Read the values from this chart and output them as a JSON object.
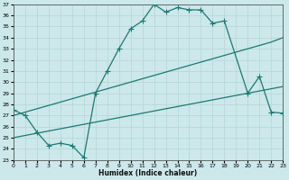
{
  "xlabel": "Humidex (Indice chaleur)",
  "bg_color": "#cce8ea",
  "grid_color": "#b8d8da",
  "line_color": "#1d7872",
  "xlim": [
    0,
    23
  ],
  "ylim": [
    23,
    37
  ],
  "xticks": [
    0,
    1,
    2,
    3,
    4,
    5,
    6,
    7,
    8,
    9,
    10,
    11,
    12,
    13,
    14,
    15,
    16,
    17,
    18,
    19,
    20,
    21,
    22,
    23
  ],
  "yticks": [
    23,
    24,
    25,
    26,
    27,
    28,
    29,
    30,
    31,
    32,
    33,
    34,
    35,
    36,
    37
  ],
  "line1_x": [
    0,
    1,
    2,
    3,
    4,
    5,
    6,
    7,
    8,
    9,
    10,
    11,
    12,
    13,
    14,
    15,
    16,
    17,
    18,
    20,
    21,
    22,
    23
  ],
  "line1_y": [
    27.5,
    27.0,
    25.5,
    24.3,
    24.5,
    24.3,
    23.2,
    29.0,
    31.0,
    33.0,
    34.8,
    35.5,
    37.0,
    36.3,
    36.7,
    36.5,
    36.5,
    35.3,
    35.5,
    29.0,
    30.5,
    27.3,
    27.2
  ],
  "line2_x": [
    0,
    1,
    2,
    3,
    4,
    5,
    6,
    7,
    8,
    9,
    10,
    11,
    12,
    13,
    14,
    15,
    16,
    17,
    18,
    19,
    20,
    21,
    22,
    23
  ],
  "line2_y": [
    27.0,
    27.3,
    27.6,
    27.9,
    28.2,
    28.5,
    28.8,
    29.1,
    29.4,
    29.7,
    30.0,
    30.3,
    30.6,
    30.9,
    31.2,
    31.5,
    31.8,
    32.1,
    32.4,
    32.7,
    33.0,
    33.3,
    33.6,
    34.0
  ],
  "line3_x": [
    0,
    1,
    2,
    3,
    4,
    5,
    6,
    7,
    8,
    9,
    10,
    11,
    12,
    13,
    14,
    15,
    16,
    17,
    18,
    19,
    20,
    21,
    22,
    23
  ],
  "line3_y": [
    25.0,
    25.2,
    25.4,
    25.6,
    25.8,
    26.0,
    26.2,
    26.4,
    26.6,
    26.8,
    27.0,
    27.2,
    27.4,
    27.6,
    27.8,
    28.0,
    28.2,
    28.4,
    28.6,
    28.8,
    29.0,
    29.2,
    29.4,
    29.6
  ]
}
